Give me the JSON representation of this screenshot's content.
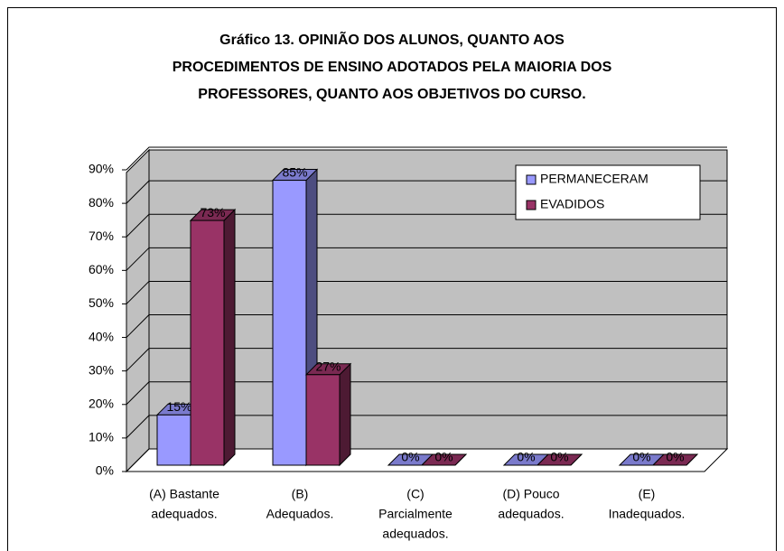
{
  "chart_data": {
    "type": "bar3d",
    "title": [
      "Gráfico 13. OPINIÃO DOS ALUNOS, QUANTO AOS",
      "PROCEDIMENTOS DE ENSINO ADOTADOS PELA MAIORIA DOS",
      "PROFESSORES, QUANTO AOS OBJETIVOS DO CURSO."
    ],
    "categories": [
      [
        "(A) Bastante",
        "adequados."
      ],
      [
        "(B)",
        "Adequados."
      ],
      [
        "(C)",
        "Parcialmente",
        "adequados."
      ],
      [
        "(D) Pouco",
        "adequados."
      ],
      [
        "(E)",
        "Inadequados."
      ]
    ],
    "series": [
      {
        "name": "PERMANECERAM",
        "color": "#9999ff",
        "values": [
          15,
          85,
          0,
          0,
          0
        ],
        "value_labels": [
          "15%",
          "85%",
          "0%",
          "0%",
          "0%"
        ]
      },
      {
        "name": "EVADIDOS",
        "color": "#993366",
        "values": [
          73,
          27,
          0,
          0,
          0
        ],
        "value_labels": [
          "73%",
          "27%",
          "0%",
          "0%",
          "0%"
        ]
      }
    ],
    "ylim": [
      0,
      90
    ],
    "yticks": [
      {
        "value": 0,
        "label": "0%"
      },
      {
        "value": 10,
        "label": "10%"
      },
      {
        "value": 20,
        "label": "20%"
      },
      {
        "value": 30,
        "label": "30%"
      },
      {
        "value": 40,
        "label": "40%"
      },
      {
        "value": 50,
        "label": "50%"
      },
      {
        "value": 60,
        "label": "60%"
      },
      {
        "value": 70,
        "label": "70%"
      },
      {
        "value": 80,
        "label": "80%"
      },
      {
        "value": 90,
        "label": "90%"
      }
    ],
    "grid": true,
    "legend": "top-right"
  }
}
